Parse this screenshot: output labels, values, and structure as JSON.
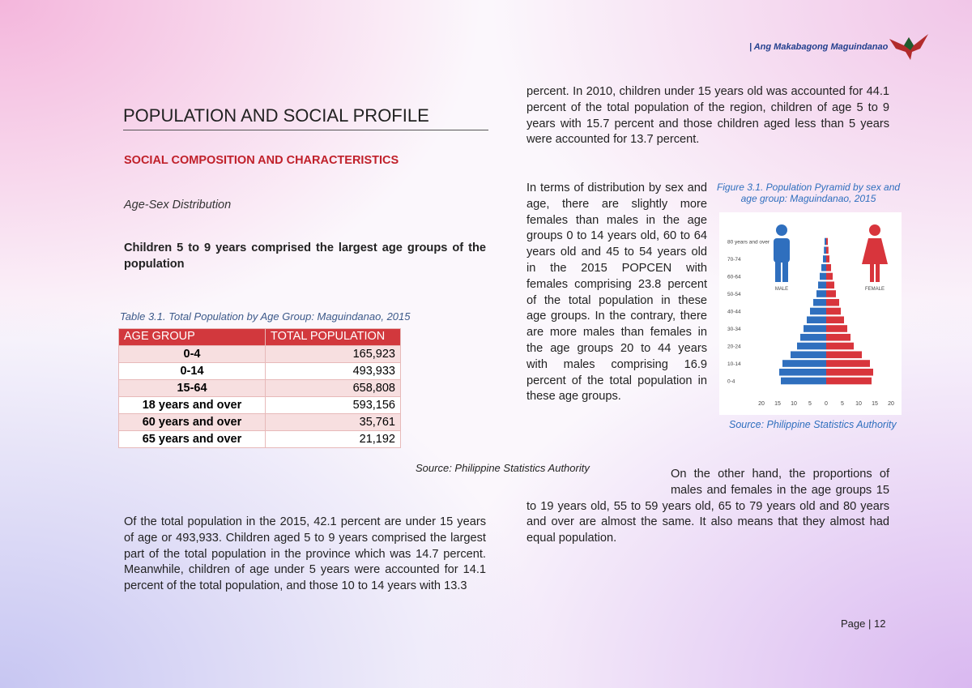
{
  "header": {
    "brand": "| Ang Makabagong Maguindanao"
  },
  "title": "POPULATION AND SOCIAL PROFILE",
  "section": "SOCIAL COMPOSITION AND CHARACTERISTICS",
  "subsection": "Age-Sex Distribution",
  "heading": "Children 5 to 9 years comprised the largest age groups of the population",
  "table": {
    "caption": "Table 3.1. Total Population by Age Group: Maguindanao, 2015",
    "columns": [
      "AGE GROUP",
      "TOTAL POPULATION"
    ],
    "rows": [
      [
        "0-4",
        "165,923"
      ],
      [
        "0-14",
        "493,933"
      ],
      [
        "15-64",
        "658,808"
      ],
      [
        "18 years and over",
        "593,156"
      ],
      [
        "60 years and over",
        "35,761"
      ],
      [
        "65 years and over",
        "21,192"
      ]
    ],
    "source": "Source: Philippine Statistics Authority"
  },
  "paragraphs": [
    "Of the total population in the 2015, 42.1 percent are under 15 years of age or 493,933. Children aged 5 to 9 years comprised the largest part of the total population in the province which was 14.7 percent. Meanwhile, children of age under 5 years were accounted for 14.1 percent of the total population, and those 10 to 14 years with 13.3",
    "percent. In 2010, children under 15 years old was accounted for 44.1 percent of the total population of the region, children of age 5 to 9 years with 15.7 percent and those children aged less than 5 years were accounted for 13.7 percent.",
    "In terms of distribution by sex and age, there are slightly more females than males in the age groups 0 to 14 years old, 60 to 64 years old and 45 to 54 years old in the 2015 POPCEN with females comprising 23.8 percent of the total population in these age groups. In the contrary, there are more males than females in the age groups 20 to 44 years with males comprising 16.9 percent of the total population in these age groups.",
    "On the other hand, the proportions of males and females in the age groups 15 to 19 years old, 55 to 59 years old, 65 to 79 years old and 80 years and over are almost the same. It also means that they almost had equal population."
  ],
  "figure": {
    "caption": "Figure 3.1. Population Pyramid by sex and age group: Maguindanao, 2015",
    "source": "Source: Philippine Statistics Authority"
  },
  "chart_data": {
    "type": "pyramid",
    "categories": [
      "0-4",
      null,
      "10-14",
      null,
      "20-24",
      null,
      "30-34",
      null,
      "40-44",
      null,
      "50-54",
      null,
      "60-64",
      null,
      "70-74",
      null,
      "80 years and over"
    ],
    "series": [
      {
        "name": "MALE",
        "color": "#2f6fbe",
        "values": [
          14,
          14.5,
          13.5,
          11,
          9,
          8,
          7,
          6,
          5,
          4,
          3,
          2.5,
          2,
          1.5,
          1,
          0.7,
          0.5
        ]
      },
      {
        "name": "FEMALE",
        "color": "#d8353c",
        "values": [
          14,
          14.5,
          13.5,
          11,
          8.5,
          7.5,
          6.5,
          5.5,
          4.5,
          4,
          3,
          2.5,
          2,
          1.5,
          1,
          0.7,
          0.5
        ]
      }
    ],
    "xlim": [
      -20,
      20
    ],
    "xticks": [
      {
        "value": -20,
        "label": "20"
      },
      {
        "value": -15,
        "label": "15"
      },
      {
        "value": -10,
        "label": "10"
      },
      {
        "value": -5,
        "label": "5"
      },
      0,
      5,
      10,
      15,
      20
    ]
  },
  "footer": {
    "page": "Page | 12"
  }
}
